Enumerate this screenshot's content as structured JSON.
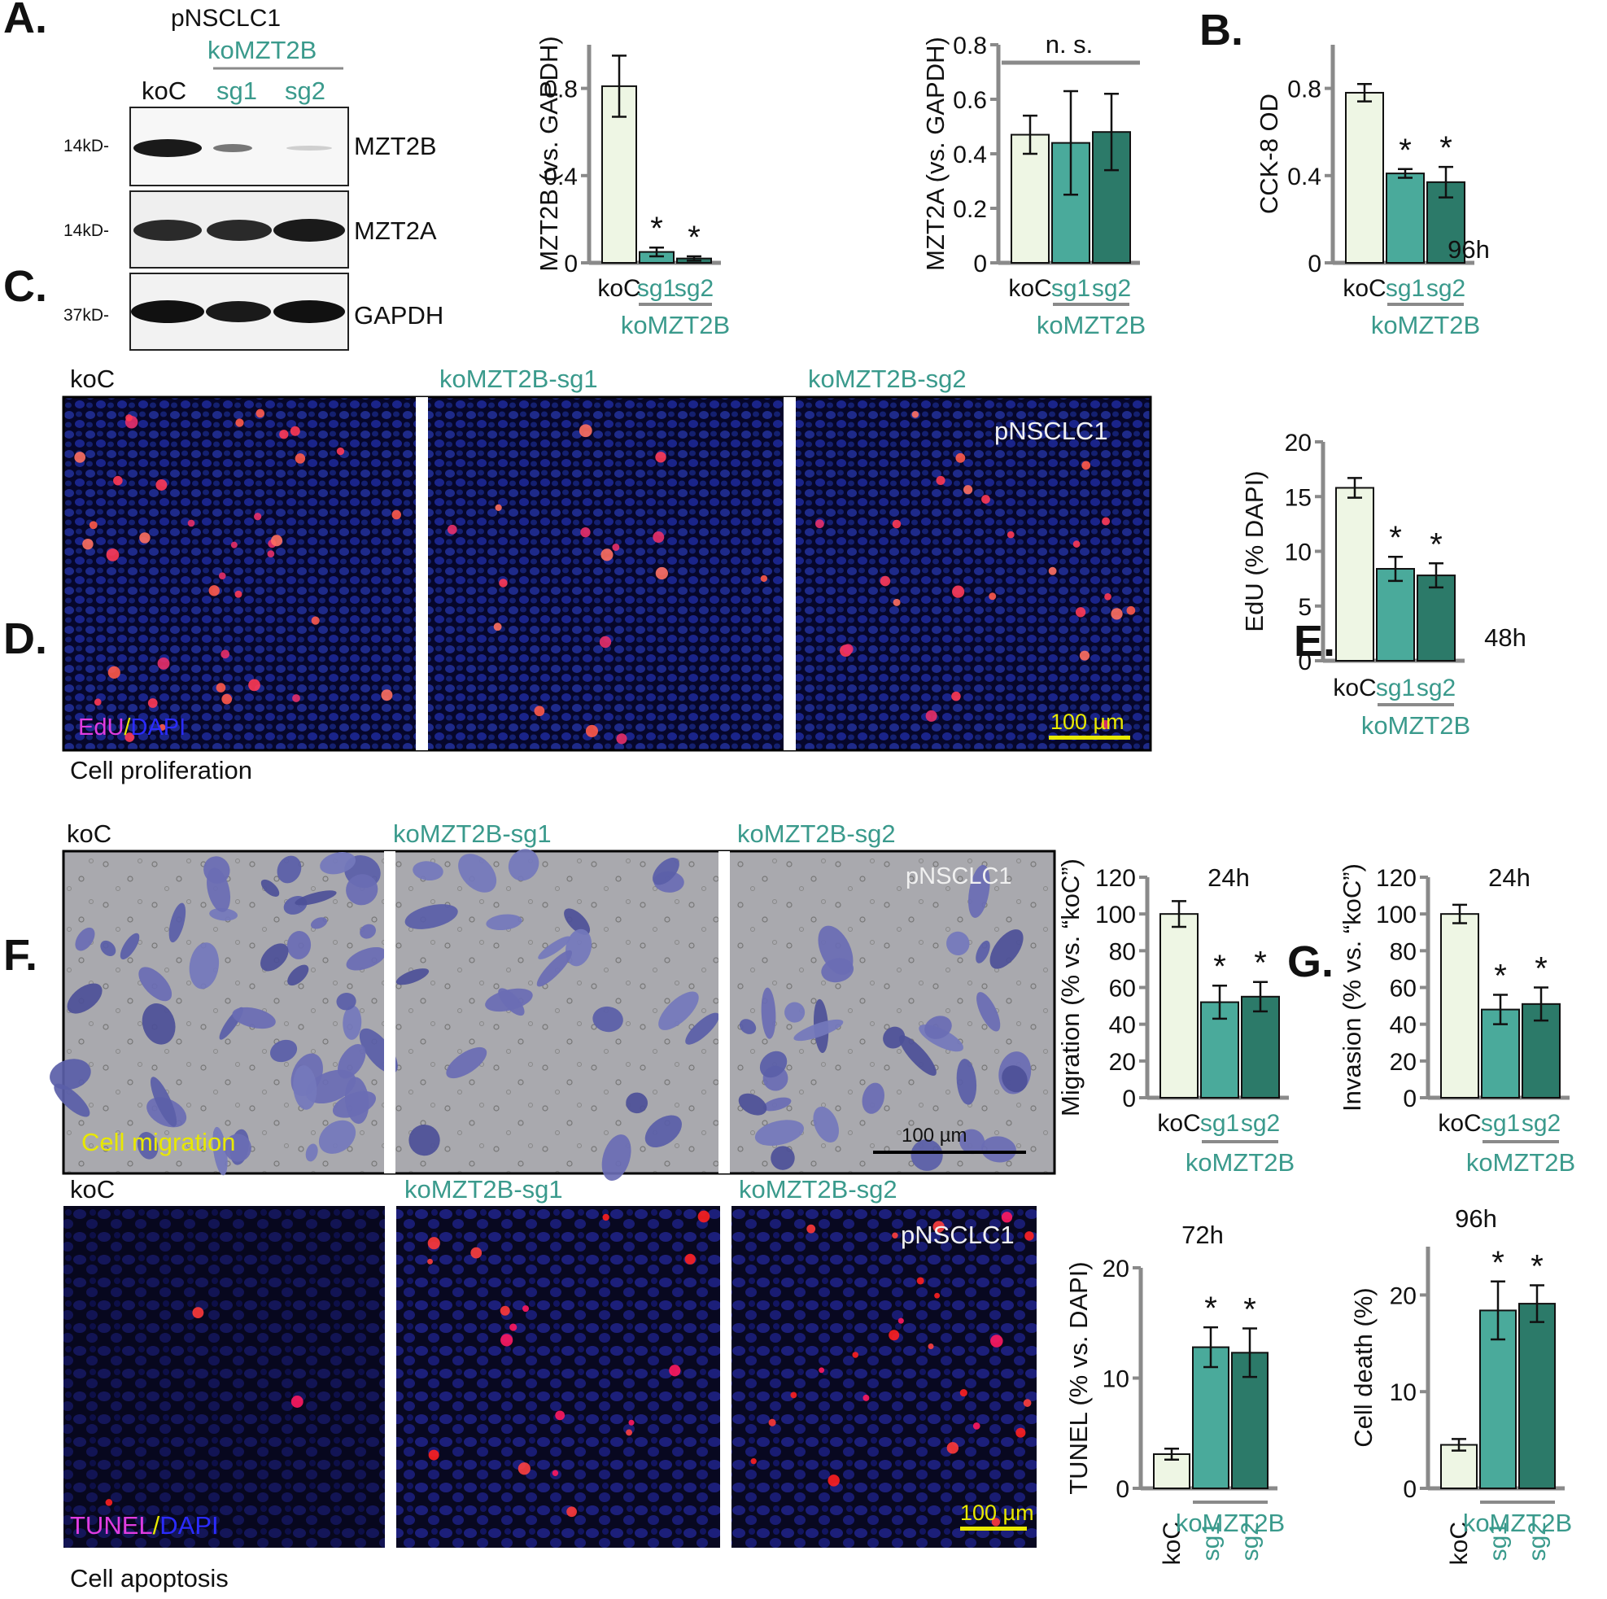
{
  "panel_labels": [
    "A.",
    "B.",
    "C.",
    "D.",
    "E.",
    "F.",
    "G."
  ],
  "colors": {
    "koC": "#eef6e4",
    "sg1": "#4aaa9b",
    "sg2": "#2c7a69",
    "teal_text": "#3a9a8c",
    "axis": "#8a8a8a",
    "scale_yellow": "#e8e800"
  },
  "blot": {
    "cell_line": "pNSCLC1",
    "group": "koMZT2B",
    "lanes": [
      "koC",
      "sg1",
      "sg2"
    ],
    "rows": [
      {
        "marker": "14kD-",
        "protein": "MZT2B"
      },
      {
        "marker": "14kD-",
        "protein": "MZT2A"
      },
      {
        "marker": "37kD-",
        "protein": "GAPDH"
      }
    ]
  },
  "microscopy": {
    "C": {
      "cond_labels": [
        "koC",
        "koMZT2B-sg1",
        "koMZT2B-sg2"
      ],
      "cell_line": "pNSCLC1",
      "stain_a": "EdU",
      "stain_sep": "/",
      "stain_b": "DAPI",
      "scale": "100 µm",
      "caption": "Cell proliferation"
    },
    "D": {
      "cond_labels": [
        "koC",
        "koMZT2B-sg1",
        "koMZT2B-sg2"
      ],
      "cell_line": "pNSCLC1",
      "overlay": "Cell migration",
      "scale": "100 µm"
    },
    "F": {
      "cond_labels": [
        "koC",
        "koMZT2B-sg1",
        "koMZT2B-sg2"
      ],
      "cell_line": "pNSCLC1",
      "stain_a": "TUNEL",
      "stain_sep": "/",
      "stain_b": "DAPI",
      "scale": "100 µm",
      "caption": "Cell apoptosis"
    }
  },
  "chart_data": [
    {
      "id": "A1",
      "type": "bar",
      "categories": [
        "koC",
        "sg1",
        "sg2"
      ],
      "group_label": "koMZT2B",
      "values": [
        0.81,
        0.05,
        0.02
      ],
      "errors": [
        0.14,
        0.02,
        0.01
      ],
      "significance": [
        "",
        "*",
        "*"
      ],
      "ylabel": "MZT2B (vs. GAPDH)",
      "ylim": [
        0,
        1.0
      ],
      "yticks": [
        0,
        0.4,
        0.8
      ],
      "ytick_labels": [
        "0",
        "0.4",
        "0.8"
      ],
      "note": "",
      "bracket_label": "",
      "xtick_rotation": 0
    },
    {
      "id": "A2",
      "type": "bar",
      "categories": [
        "koC",
        "sg1",
        "sg2"
      ],
      "group_label": "koMZT2B",
      "values": [
        0.47,
        0.44,
        0.48
      ],
      "errors": [
        0.07,
        0.19,
        0.14
      ],
      "significance": [
        "",
        "",
        ""
      ],
      "ylabel": "MZT2A (vs. GAPDH)",
      "ylim": [
        0,
        0.8
      ],
      "yticks": [
        0,
        0.2,
        0.4,
        0.6,
        0.8
      ],
      "ytick_labels": [
        "0",
        "0.2",
        "0.4",
        "0.6",
        "0.8"
      ],
      "note": "",
      "bracket_label": "n. s.",
      "xtick_rotation": 0
    },
    {
      "id": "B",
      "type": "bar",
      "categories": [
        "koC",
        "sg1",
        "sg2"
      ],
      "group_label": "koMZT2B",
      "values": [
        0.78,
        0.41,
        0.37
      ],
      "errors": [
        0.04,
        0.02,
        0.07
      ],
      "significance": [
        "",
        "*",
        "*"
      ],
      "ylabel": "CCK-8 OD",
      "ylim": [
        0,
        1.0
      ],
      "yticks": [
        0,
        0.4,
        0.8
      ],
      "ytick_labels": [
        "0",
        "0.4",
        "0.8"
      ],
      "note": "96h",
      "bracket_label": "",
      "xtick_rotation": 0
    },
    {
      "id": "C",
      "type": "bar",
      "categories": [
        "koC",
        "sg1",
        "sg2"
      ],
      "group_label": "koMZT2B",
      "values": [
        15.8,
        8.4,
        7.8
      ],
      "errors": [
        0.9,
        1.1,
        1.1
      ],
      "significance": [
        "",
        "*",
        "*"
      ],
      "ylabel": "EdU (% DAPI)",
      "ylim": [
        0,
        20
      ],
      "yticks": [
        0,
        5,
        10,
        15,
        20
      ],
      "ytick_labels": [
        "0",
        "5",
        "10",
        "15",
        "20"
      ],
      "note": "48h",
      "bracket_label": "",
      "xtick_rotation": 0
    },
    {
      "id": "D",
      "type": "bar",
      "categories": [
        "koC",
        "sg1",
        "sg2"
      ],
      "group_label": "koMZT2B",
      "values": [
        100,
        52,
        55
      ],
      "errors": [
        7,
        9,
        8
      ],
      "significance": [
        "",
        "*",
        "*"
      ],
      "ylabel": "Migration (% vs. “koC”)",
      "ylim": [
        0,
        120
      ],
      "yticks": [
        0,
        20,
        40,
        60,
        80,
        100,
        120
      ],
      "ytick_labels": [
        "0",
        "20",
        "40",
        "60",
        "80",
        "100",
        "120"
      ],
      "note": "24h",
      "bracket_label": "",
      "xtick_rotation": 0
    },
    {
      "id": "E",
      "type": "bar",
      "categories": [
        "koC",
        "sg1",
        "sg2"
      ],
      "group_label": "koMZT2B",
      "values": [
        100,
        48,
        51
      ],
      "errors": [
        5,
        8,
        9
      ],
      "significance": [
        "",
        "*",
        "*"
      ],
      "ylabel": "Invasion (% vs. “koC”)",
      "ylim": [
        0,
        120
      ],
      "yticks": [
        0,
        20,
        40,
        60,
        80,
        100,
        120
      ],
      "ytick_labels": [
        "0",
        "20",
        "40",
        "60",
        "80",
        "100",
        "120"
      ],
      "note": "24h",
      "bracket_label": "",
      "xtick_rotation": 0
    },
    {
      "id": "F",
      "type": "bar",
      "categories": [
        "koC",
        "sg1",
        "sg2"
      ],
      "group_label": "koMZT2B",
      "values": [
        3.1,
        12.8,
        12.3
      ],
      "errors": [
        0.5,
        1.8,
        2.2
      ],
      "significance": [
        "",
        "*",
        "*"
      ],
      "ylabel": "TUNEL (% vs. DAPI)",
      "ylim": [
        0,
        20
      ],
      "yticks": [
        0,
        10,
        20
      ],
      "ytick_labels": [
        "0",
        "10",
        "20"
      ],
      "note": "72h",
      "bracket_label": "",
      "xtick_rotation": -90
    },
    {
      "id": "G",
      "type": "bar",
      "categories": [
        "koC",
        "sg1",
        "sg2"
      ],
      "group_label": "koMZT2B",
      "values": [
        4.5,
        18.4,
        19.1
      ],
      "errors": [
        0.6,
        3.0,
        1.9
      ],
      "significance": [
        "",
        "*",
        "*"
      ],
      "ylabel": "Cell death (%)",
      "ylim": [
        0,
        25
      ],
      "yticks": [
        0,
        10,
        20
      ],
      "ytick_labels": [
        "0",
        "10",
        "20"
      ],
      "note": "96h",
      "bracket_label": "",
      "xtick_rotation": -90
    }
  ]
}
